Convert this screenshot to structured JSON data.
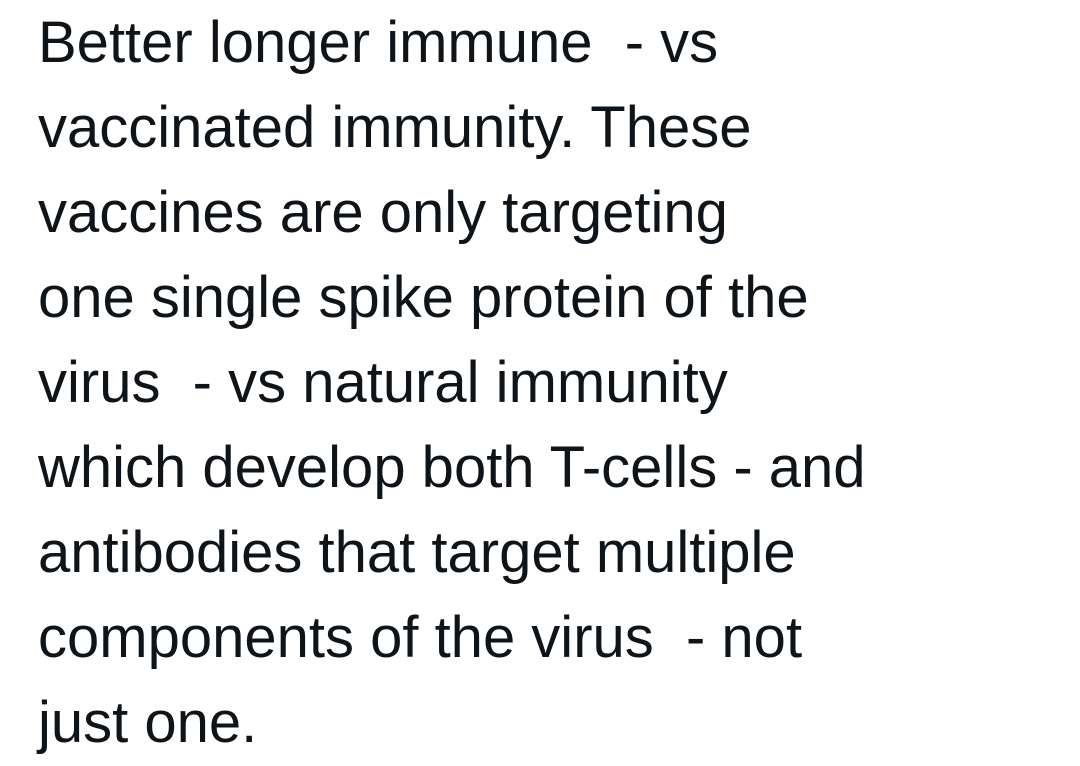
{
  "tweet": {
    "lines": [
      "Better longer immune  - vs",
      "vaccinated immunity. These",
      "vaccines are only targeting",
      "one single spike protein of the",
      "virus  - vs natural immunity",
      "which develop both T-cells - and",
      "antibodies that target multiple",
      "components of the virus  - not",
      "just one."
    ]
  },
  "colors": {
    "background": "#ffffff",
    "text": "#0f1419"
  }
}
